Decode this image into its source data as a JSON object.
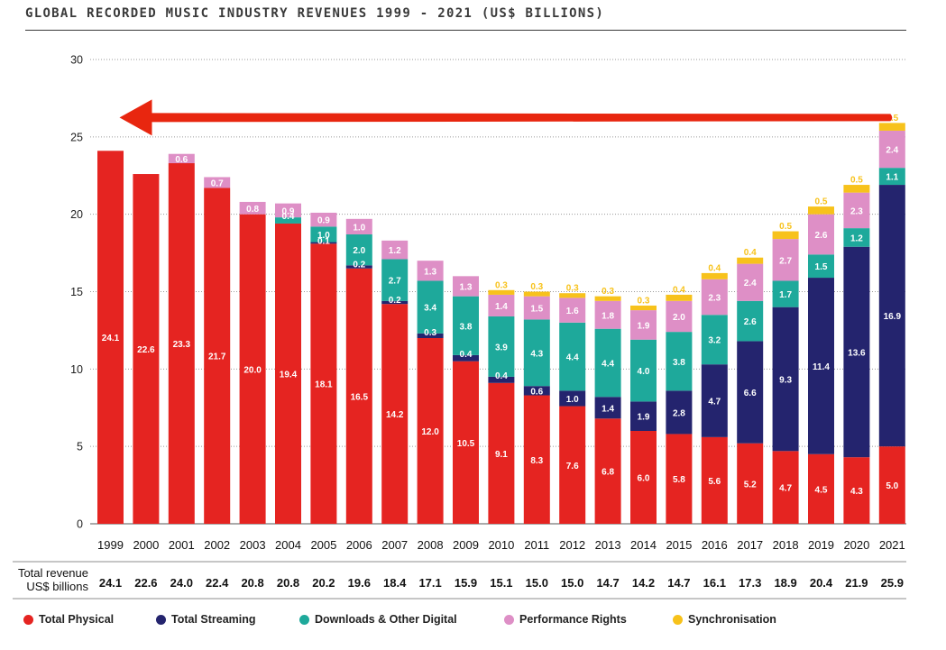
{
  "title": "GLOBAL RECORDED MUSIC INDUSTRY REVENUES 1999 - 2021 (US$ BILLIONS)",
  "total_revenue_label": [
    "Total revenue",
    "US$ billions"
  ],
  "colors": {
    "physical": "#e52421",
    "streaming": "#24246e",
    "downloads": "#1ea99b",
    "performance": "#de8fc6",
    "sync": "#f7c21b",
    "arrow": "#e8260f"
  },
  "legend": [
    {
      "key": "physical",
      "label": "Total Physical"
    },
    {
      "key": "streaming",
      "label": "Total Streaming"
    },
    {
      "key": "downloads",
      "label": "Downloads & Other Digital"
    },
    {
      "key": "performance",
      "label": "Performance Rights"
    },
    {
      "key": "sync",
      "label": "Synchronisation"
    }
  ],
  "chart_data": {
    "type": "bar",
    "stacked": true,
    "title": "GLOBAL RECORDED MUSIC INDUSTRY REVENUES 1999 - 2021 (US$ BILLIONS)",
    "xlabel": "",
    "ylabel": "",
    "ylim": [
      0,
      30
    ],
    "yticks": [
      0,
      5,
      10,
      15,
      20,
      25,
      30
    ],
    "grid": true,
    "legend_position": "bottom",
    "categories": [
      "1999",
      "2000",
      "2001",
      "2002",
      "2003",
      "2004",
      "2005",
      "2006",
      "2007",
      "2008",
      "2009",
      "2010",
      "2011",
      "2012",
      "2013",
      "2014",
      "2015",
      "2016",
      "2017",
      "2018",
      "2019",
      "2020",
      "2021"
    ],
    "series": [
      {
        "key": "physical",
        "name": "Total Physical",
        "values": [
          24.1,
          22.6,
          23.3,
          21.7,
          20.0,
          19.4,
          18.1,
          16.5,
          14.2,
          12.0,
          10.5,
          9.1,
          8.3,
          7.6,
          6.8,
          6.0,
          5.8,
          5.6,
          5.2,
          4.7,
          4.5,
          4.3,
          5.0
        ]
      },
      {
        "key": "streaming",
        "name": "Total Streaming",
        "values": [
          null,
          null,
          null,
          null,
          null,
          null,
          0.1,
          0.2,
          0.2,
          0.3,
          0.4,
          0.4,
          0.6,
          1.0,
          1.4,
          1.9,
          2.8,
          4.7,
          6.6,
          9.3,
          11.4,
          13.6,
          16.9
        ]
      },
      {
        "key": "downloads",
        "name": "Downloads & Other Digital",
        "values": [
          null,
          null,
          null,
          null,
          null,
          0.4,
          1.0,
          2.0,
          2.7,
          3.4,
          3.8,
          3.9,
          4.3,
          4.4,
          4.4,
          4.0,
          3.8,
          3.2,
          2.6,
          1.7,
          1.5,
          1.2,
          1.1
        ]
      },
      {
        "key": "performance",
        "name": "Performance Rights",
        "values": [
          null,
          null,
          0.6,
          0.7,
          0.8,
          0.9,
          0.9,
          1.0,
          1.2,
          1.3,
          1.3,
          1.4,
          1.5,
          1.6,
          1.8,
          1.9,
          2.0,
          2.3,
          2.4,
          2.7,
          2.6,
          2.3,
          2.4
        ]
      },
      {
        "key": "sync",
        "name": "Synchronisation",
        "values": [
          null,
          null,
          null,
          null,
          null,
          null,
          null,
          null,
          null,
          null,
          null,
          0.3,
          0.3,
          0.3,
          0.3,
          0.3,
          0.4,
          0.4,
          0.4,
          0.5,
          0.5,
          0.5,
          0.5
        ]
      }
    ],
    "totals": [
      24.1,
      22.6,
      24.0,
      22.4,
      20.8,
      20.8,
      20.2,
      19.6,
      18.4,
      17.1,
      15.9,
      15.1,
      15.0,
      15.0,
      14.7,
      14.2,
      14.7,
      16.1,
      17.3,
      18.9,
      20.4,
      21.9,
      25.9
    ],
    "annotation": "arrow pointing from 2021 back to 1999 at the 2021 total level"
  }
}
